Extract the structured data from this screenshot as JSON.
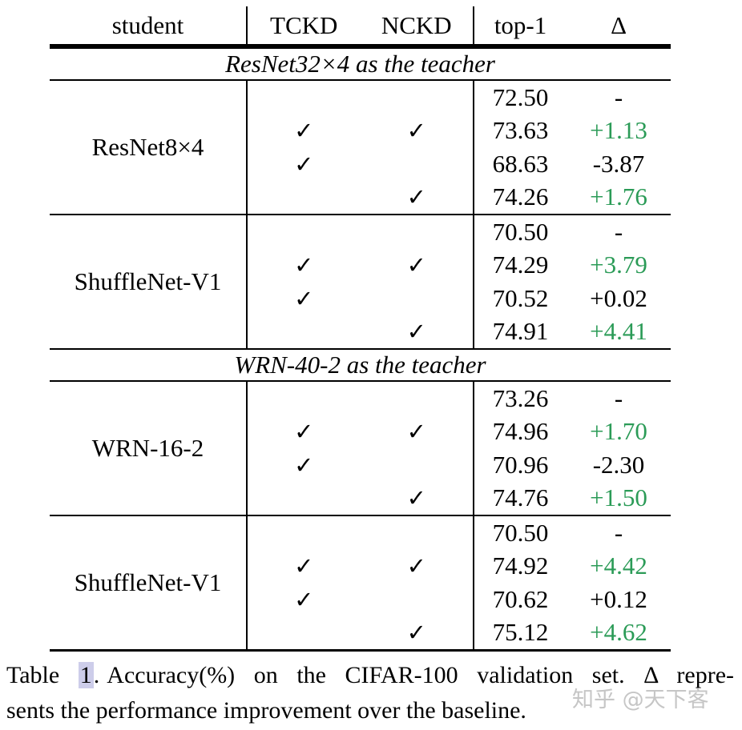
{
  "table": {
    "header": {
      "student": "student",
      "tckd": "TCKD",
      "nckd": "NCKD",
      "top1": "top-1",
      "delta": "Δ"
    },
    "sections": [
      {
        "title": "ResNet32×4 as the teacher",
        "groups": [
          {
            "student": "ResNet8×4",
            "rows": [
              {
                "tckd": "",
                "nckd": "",
                "top1": "72.50",
                "delta": "-",
                "delta_color": "black"
              },
              {
                "tckd": "✓",
                "nckd": "✓",
                "top1": "73.63",
                "delta": "+1.13",
                "delta_color": "green"
              },
              {
                "tckd": "✓",
                "nckd": "",
                "top1": "68.63",
                "delta": "-3.87",
                "delta_color": "black"
              },
              {
                "tckd": "",
                "nckd": "✓",
                "top1": "74.26",
                "delta": "+1.76",
                "delta_color": "green"
              }
            ]
          },
          {
            "student": "ShuffleNet-V1",
            "rows": [
              {
                "tckd": "",
                "nckd": "",
                "top1": "70.50",
                "delta": "-",
                "delta_color": "black"
              },
              {
                "tckd": "✓",
                "nckd": "✓",
                "top1": "74.29",
                "delta": "+3.79",
                "delta_color": "green"
              },
              {
                "tckd": "✓",
                "nckd": "",
                "top1": "70.52",
                "delta": "+0.02",
                "delta_color": "black"
              },
              {
                "tckd": "",
                "nckd": "✓",
                "top1": "74.91",
                "delta": "+4.41",
                "delta_color": "green"
              }
            ]
          }
        ]
      },
      {
        "title": "WRN-40-2 as the teacher",
        "groups": [
          {
            "student": "WRN-16-2",
            "rows": [
              {
                "tckd": "",
                "nckd": "",
                "top1": "73.26",
                "delta": "-",
                "delta_color": "black"
              },
              {
                "tckd": "✓",
                "nckd": "✓",
                "top1": "74.96",
                "delta": "+1.70",
                "delta_color": "green"
              },
              {
                "tckd": "✓",
                "nckd": "",
                "top1": "70.96",
                "delta": "-2.30",
                "delta_color": "black"
              },
              {
                "tckd": "",
                "nckd": "✓",
                "top1": "74.76",
                "delta": "+1.50",
                "delta_color": "green"
              }
            ]
          },
          {
            "student": "ShuffleNet-V1",
            "rows": [
              {
                "tckd": "",
                "nckd": "",
                "top1": "70.50",
                "delta": "-",
                "delta_color": "black"
              },
              {
                "tckd": "✓",
                "nckd": "✓",
                "top1": "74.92",
                "delta": "+4.42",
                "delta_color": "green"
              },
              {
                "tckd": "✓",
                "nckd": "",
                "top1": "70.62",
                "delta": "+0.12",
                "delta_color": "black"
              },
              {
                "tckd": "",
                "nckd": "✓",
                "top1": "75.12",
                "delta": "+4.62",
                "delta_color": "green"
              }
            ]
          }
        ]
      }
    ]
  },
  "caption": {
    "prefix": "Table ",
    "ref": "1",
    "dot": ".",
    "line1_rest": "Accuracy(%) on the CIFAR-100 validation set. Δ repre-",
    "line2": "sents the performance improvement over the baseline."
  },
  "watermark": "知乎 @天下客",
  "colors": {
    "positive_delta": "#2b9b57",
    "text": "#000000",
    "ref_highlight": "#cdcdea",
    "watermark": "#c6c6c6"
  }
}
